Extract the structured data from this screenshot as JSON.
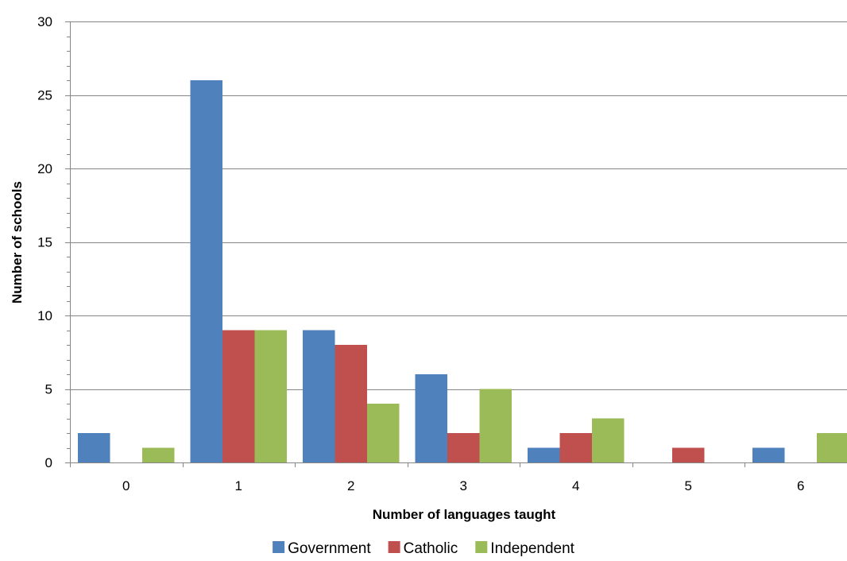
{
  "chart_data": {
    "type": "bar",
    "categories": [
      "0",
      "1",
      "2",
      "3",
      "4",
      "5",
      "6"
    ],
    "series": [
      {
        "name": "Government",
        "color": "#4F81BD",
        "values": [
          2,
          26,
          9,
          6,
          1,
          0,
          1
        ]
      },
      {
        "name": "Catholic",
        "color": "#C0504D",
        "values": [
          0,
          9,
          8,
          2,
          2,
          1,
          0
        ]
      },
      {
        "name": "Independent",
        "color": "#9BBB59",
        "values": [
          1,
          9,
          4,
          5,
          3,
          0,
          2
        ]
      }
    ],
    "title": "",
    "xlabel": "Number of languages  taught",
    "ylabel": "Number of schools",
    "ylim": [
      0,
      30
    ],
    "yticks": [
      0,
      5,
      10,
      15,
      20,
      25,
      30
    ],
    "grid": true,
    "legend_position": "bottom"
  }
}
